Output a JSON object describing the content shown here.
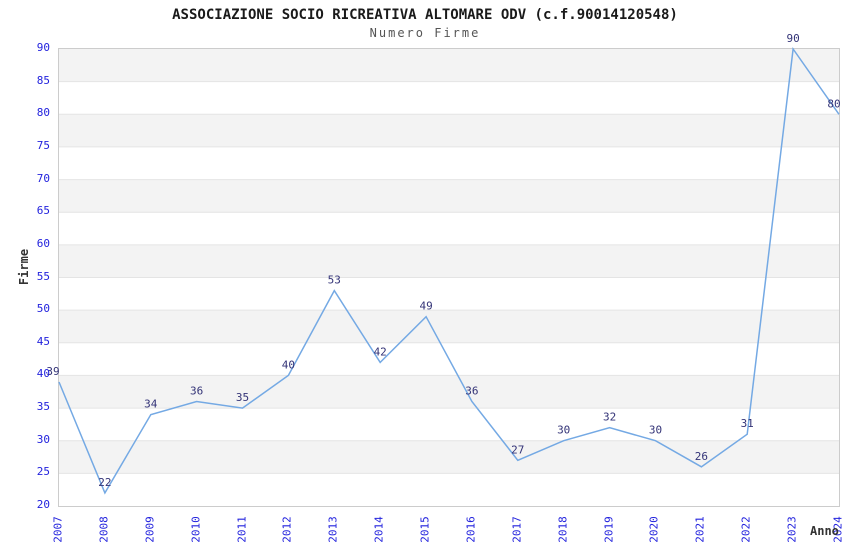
{
  "chart_data": {
    "type": "line",
    "title": "ASSOCIAZIONE SOCIO RICREATIVA ALTOMARE ODV (c.f.90014120548)",
    "subtitle": "Numero Firme",
    "xlabel": "Anno",
    "ylabel": "Firme",
    "categories": [
      "2007",
      "2008",
      "2009",
      "2010",
      "2011",
      "2012",
      "2013",
      "2014",
      "2015",
      "2016",
      "2017",
      "2018",
      "2019",
      "2020",
      "2021",
      "2022",
      "2023",
      "2024"
    ],
    "values": [
      39,
      22,
      34,
      36,
      35,
      40,
      53,
      42,
      49,
      36,
      27,
      30,
      32,
      30,
      26,
      31,
      90,
      80
    ],
    "ylim": [
      20,
      90
    ],
    "ytick_step": 5,
    "yticks": [
      "20",
      "25",
      "30",
      "35",
      "40",
      "45",
      "50",
      "55",
      "60",
      "65",
      "70",
      "75",
      "80",
      "85",
      "90"
    ],
    "grid": "horizontal-bands-alternating",
    "legend": "none",
    "colors": {
      "line": "#74a9e4",
      "point_label": "#333377",
      "tick_label": "#2222dd",
      "band_fill": "#f3f3f3",
      "gridline": "#e4e4e4",
      "plot_border": "#cccccc",
      "title": "#1a1a1a",
      "subtitle": "#555555",
      "axis_label": "#333333",
      "background": "#ffffff"
    }
  }
}
